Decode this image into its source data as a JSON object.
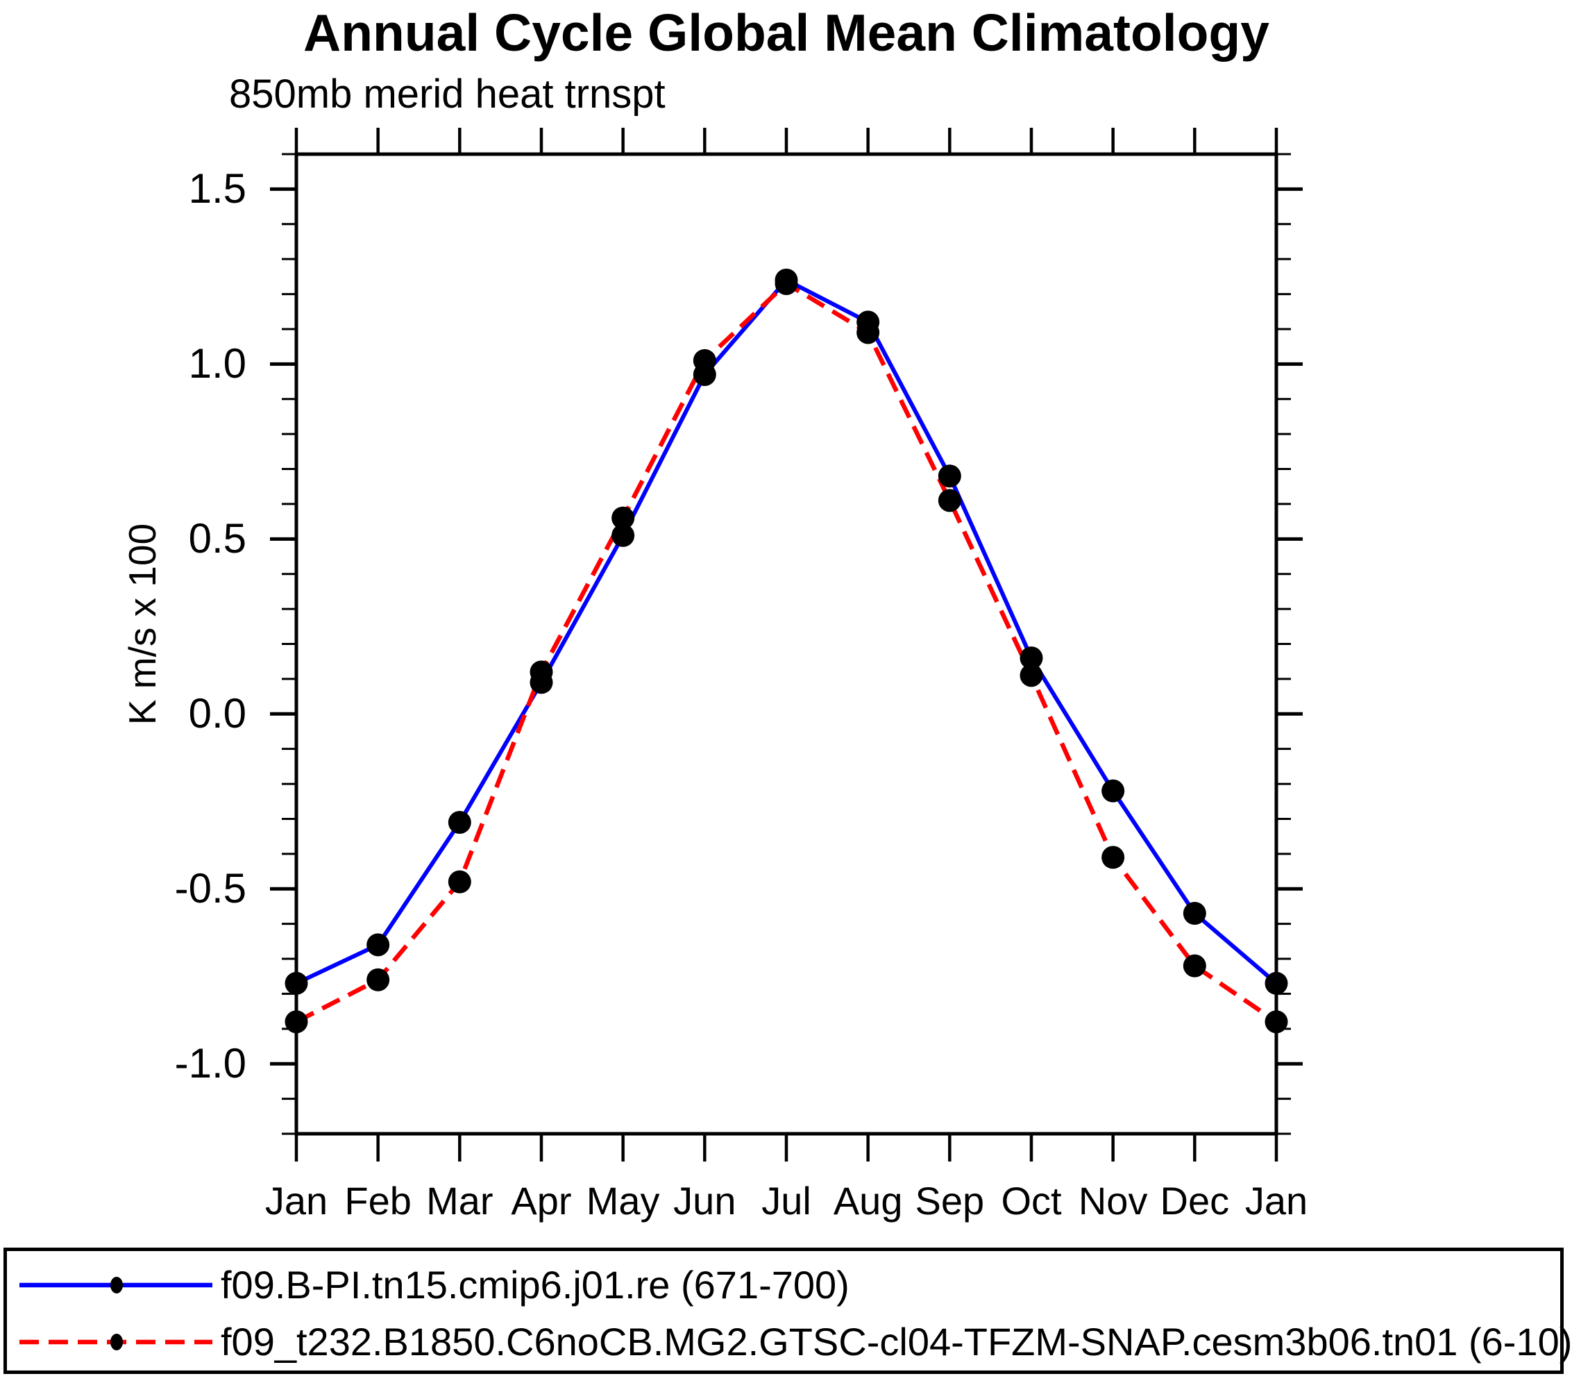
{
  "figure": {
    "title": "Annual Cycle Global Mean Climatology",
    "subtitle": "850mb merid heat trnspt",
    "ylabel": "K m/s x 100"
  },
  "legend": {
    "entries": [
      {
        "label": "f09.B-PI.tn15.cmip6.j01.re (671-700)",
        "color": "#0000ff",
        "style": "solid"
      },
      {
        "label": "f09_t232.B1850.C6noCB.MG2.GTSC-cl04-TFZM-SNAP.cesm3b06.tn01 (6-10)",
        "color": "#ff0000",
        "style": "dashed"
      }
    ],
    "marker_color": "#000000"
  },
  "chart_data": {
    "type": "line",
    "title": "Annual Cycle Global Mean Climatology",
    "subtitle": "850mb merid heat trnspt",
    "xlabel": "",
    "ylabel": "K m/s x 100",
    "categories": [
      "Jan",
      "Feb",
      "Mar",
      "Apr",
      "May",
      "Jun",
      "Jul",
      "Aug",
      "Sep",
      "Oct",
      "Nov",
      "Dec",
      "Jan"
    ],
    "series": [
      {
        "name": "f09.B-PI.tn15.cmip6.j01.re (671-700)",
        "color": "#0000ff",
        "style": "solid",
        "marker": "filled-circle",
        "values": [
          -0.77,
          -0.66,
          -0.31,
          0.09,
          0.51,
          0.97,
          1.24,
          1.12,
          0.68,
          0.16,
          -0.22,
          -0.57,
          -0.77
        ]
      },
      {
        "name": "f09_t232.B1850.C6noCB.MG2.GTSC-cl04-TFZM-SNAP.cesm3b06.tn01 (6-10)",
        "color": "#ff0000",
        "style": "dashed",
        "marker": "filled-circle",
        "values": [
          -0.88,
          -0.76,
          -0.48,
          0.12,
          0.56,
          1.01,
          1.23,
          1.09,
          0.61,
          0.11,
          -0.41,
          -0.72,
          -0.88
        ]
      }
    ],
    "ylim": [
      -1.2,
      1.6
    ],
    "ytick_major": [
      {
        "value": 1.5,
        "label": "1.5"
      },
      {
        "value": 1.0,
        "label": "1.0"
      },
      {
        "value": 0.5,
        "label": "0.5"
      },
      {
        "value": 0.0,
        "label": "0.0"
      },
      {
        "value": -0.5,
        "label": "-0.5"
      },
      {
        "value": -1.0,
        "label": "-1.0"
      }
    ],
    "ytick_minor_step": 0.1,
    "grid": false,
    "legend_position": "bottom",
    "frame_color": "#000000"
  }
}
